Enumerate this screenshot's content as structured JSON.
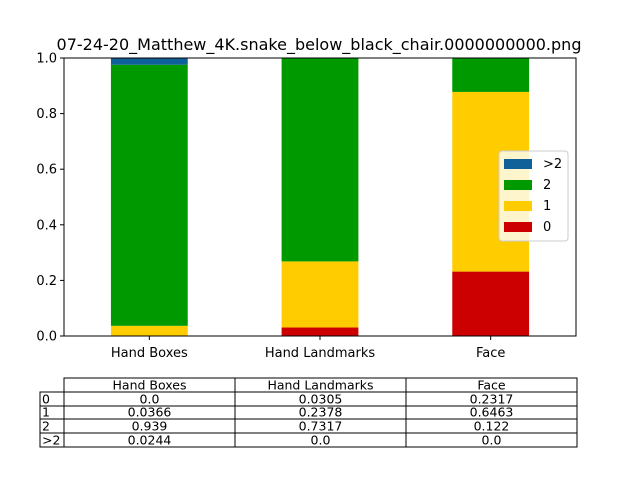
{
  "chart_data": {
    "type": "bar",
    "stacked": true,
    "title": "07-24-20_Matthew_4K.snake_below_black_chair.0000000000.png",
    "categories": [
      "Hand Boxes",
      "Hand Landmarks",
      "Face"
    ],
    "ylim": [
      0,
      1.0
    ],
    "yticks": [
      "0.0",
      "0.2",
      "0.4",
      "0.6",
      "0.8",
      "1.0"
    ],
    "series": [
      {
        "name": "0",
        "color": "#cc0000",
        "values": [
          0.0,
          0.0305,
          0.2317
        ]
      },
      {
        "name": "1",
        "color": "#ffcc00",
        "values": [
          0.0366,
          0.2378,
          0.6463
        ]
      },
      {
        "name": "2",
        "color": "#009900",
        "values": [
          0.939,
          0.7317,
          0.122
        ]
      },
      {
        "name": ">2",
        "color": "#106099",
        "values": [
          0.0244,
          0.0,
          0.0
        ]
      }
    ],
    "legend": {
      "placement": "center-right",
      "order": [
        ">2",
        "2",
        "1",
        "0"
      ]
    },
    "grid": false
  },
  "table": {
    "columns": [
      "Hand Boxes",
      "Hand Landmarks",
      "Face"
    ],
    "rows": [
      {
        "label": "0",
        "cells": [
          "0.0",
          "0.0305",
          "0.2317"
        ]
      },
      {
        "label": "1",
        "cells": [
          "0.0366",
          "0.2378",
          "0.6463"
        ]
      },
      {
        "label": "2",
        "cells": [
          "0.939",
          "0.7317",
          "0.122"
        ]
      },
      {
        "label": ">2",
        "cells": [
          "0.0244",
          "0.0",
          "0.0"
        ]
      }
    ]
  }
}
